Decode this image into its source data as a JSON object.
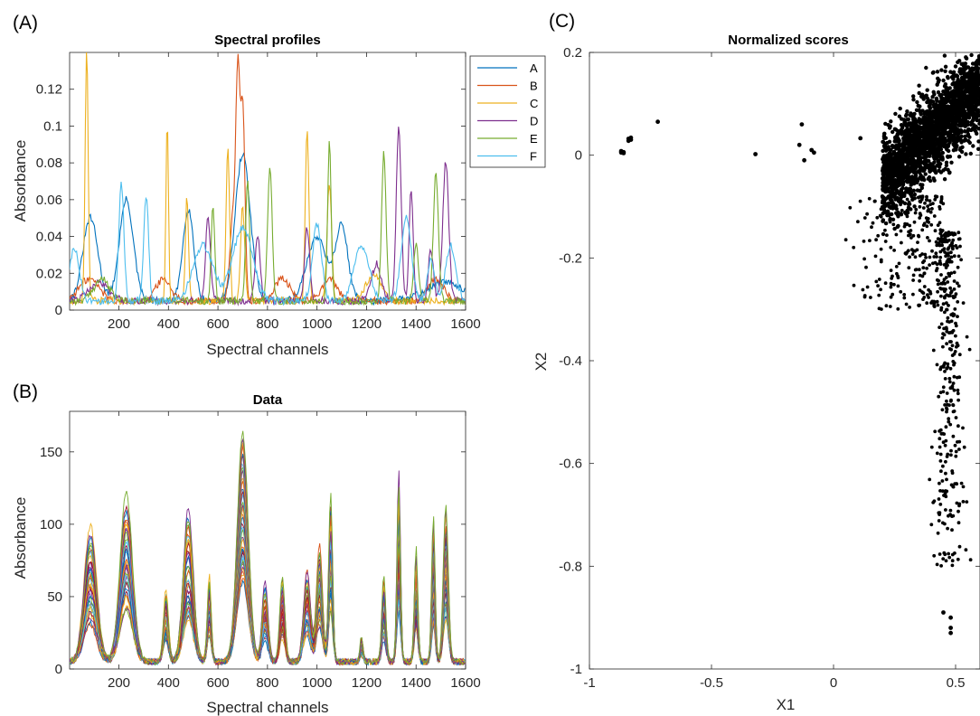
{
  "panels": {
    "a": "(A)",
    "b": "(B)",
    "c": "(C)"
  },
  "colors": [
    "#0072BD",
    "#D95319",
    "#EDB120",
    "#7E2F8E",
    "#77AC30",
    "#4DBEEE",
    "#A2142F"
  ],
  "chart_data": [
    {
      "type": "line",
      "title": "Spectral profiles",
      "xlabel": "Spectral channels",
      "ylabel": "Absorbance",
      "xlim": [
        1,
        1600
      ],
      "ylim": [
        0,
        0.14
      ],
      "xticks": [
        200,
        400,
        600,
        800,
        1000,
        1200,
        1400,
        1600
      ],
      "yticks": [
        0,
        0.02,
        0.04,
        0.06,
        0.08,
        0.1,
        0.12
      ],
      "legend_position": "outside-right",
      "series": [
        {
          "name": "A",
          "peaks": [
            [
              85,
              0.045,
              30
            ],
            [
              230,
              0.055,
              28
            ],
            [
              480,
              0.05,
              22
            ],
            [
              700,
              0.08,
              30
            ],
            [
              1000,
              0.035,
              40
            ],
            [
              1100,
              0.04,
              25
            ],
            [
              1520,
              0.01,
              80
            ]
          ]
        },
        {
          "name": "B",
          "peaks": [
            [
              80,
              0.012,
              40
            ],
            [
              380,
              0.012,
              30
            ],
            [
              660,
              0.045,
              12
            ],
            [
              680,
              0.113,
              8
            ],
            [
              700,
              0.105,
              9
            ],
            [
              860,
              0.012,
              30
            ],
            [
              1050,
              0.012,
              30
            ],
            [
              1480,
              0.012,
              30
            ]
          ]
        },
        {
          "name": "C",
          "peaks": [
            [
              70,
              0.138,
              6
            ],
            [
              395,
              0.098,
              5
            ],
            [
              475,
              0.057,
              6
            ],
            [
              640,
              0.082,
              7
            ],
            [
              700,
              0.052,
              8
            ],
            [
              960,
              0.095,
              7
            ],
            [
              1050,
              0.065,
              9
            ],
            [
              1230,
              0.015,
              30
            ]
          ]
        },
        {
          "name": "D",
          "peaks": [
            [
              120,
              0.01,
              40
            ],
            [
              560,
              0.045,
              10
            ],
            [
              760,
              0.035,
              10
            ],
            [
              960,
              0.04,
              10
            ],
            [
              1240,
              0.02,
              20
            ],
            [
              1330,
              0.094,
              10
            ],
            [
              1380,
              0.06,
              8
            ],
            [
              1460,
              0.028,
              10
            ],
            [
              1520,
              0.076,
              12
            ]
          ]
        },
        {
          "name": "E",
          "peaks": [
            [
              130,
              0.012,
              30
            ],
            [
              580,
              0.052,
              7
            ],
            [
              720,
              0.065,
              8
            ],
            [
              810,
              0.073,
              9
            ],
            [
              1050,
              0.086,
              7
            ],
            [
              1270,
              0.08,
              9
            ],
            [
              1400,
              0.03,
              10
            ],
            [
              1480,
              0.07,
              10
            ]
          ]
        },
        {
          "name": "F",
          "peaks": [
            [
              20,
              0.028,
              20
            ],
            [
              210,
              0.064,
              10
            ],
            [
              310,
              0.056,
              10
            ],
            [
              540,
              0.03,
              40
            ],
            [
              700,
              0.04,
              40
            ],
            [
              1000,
              0.042,
              18
            ],
            [
              1180,
              0.03,
              30
            ],
            [
              1360,
              0.046,
              20
            ],
            [
              1460,
              0.022,
              15
            ],
            [
              1540,
              0.03,
              20
            ]
          ]
        }
      ]
    },
    {
      "type": "line",
      "title": "Data",
      "xlabel": "Spectral channels",
      "ylabel": "Absorbance",
      "xlim": [
        1,
        1600
      ],
      "ylim": [
        0,
        178
      ],
      "xticks": [
        200,
        400,
        600,
        800,
        1000,
        1200,
        1400,
        1600
      ],
      "yticks": [
        0,
        50,
        100,
        150
      ],
      "envelope_peaks": [
        [
          85,
          98,
          25
        ],
        [
          230,
          118,
          25
        ],
        [
          390,
          52,
          10
        ],
        [
          480,
          106,
          20
        ],
        [
          565,
          65,
          8
        ],
        [
          700,
          176,
          22
        ],
        [
          790,
          58,
          12
        ],
        [
          860,
          62,
          10
        ],
        [
          960,
          68,
          14
        ],
        [
          1010,
          85,
          12
        ],
        [
          1055,
          120,
          8
        ],
        [
          1180,
          18,
          6
        ],
        [
          1270,
          62,
          8
        ],
        [
          1330,
          140,
          7
        ],
        [
          1400,
          82,
          7
        ],
        [
          1470,
          100,
          7
        ],
        [
          1520,
          108,
          10
        ]
      ],
      "series_count": 40
    },
    {
      "type": "scatter",
      "title": "Normalized scores",
      "xlabel": "X1",
      "ylabel": "X2",
      "xlim": [
        -1,
        0.6
      ],
      "ylim": [
        -1,
        0.2
      ],
      "xticks": [
        -1,
        -0.5,
        0,
        0.5
      ],
      "yticks": [
        -1,
        -0.8,
        -0.6,
        -0.4,
        -0.2,
        0,
        0.2
      ],
      "clusters": [
        {
          "points": [
            [
              -0.87,
              0.005
            ],
            [
              -0.86,
              0.004
            ],
            [
              -0.87,
              0.008
            ],
            [
              -0.86,
              0.006
            ],
            [
              -0.84,
              0.032
            ],
            [
              -0.83,
              0.034
            ],
            [
              -0.84,
              0.028
            ],
            [
              -0.83,
              0.03
            ],
            [
              -0.72,
              0.065
            ],
            [
              -0.32,
              0.002
            ],
            [
              -0.13,
              0.06
            ],
            [
              -0.14,
              0.02
            ],
            [
              -0.12,
              -0.01
            ],
            [
              -0.09,
              0.01
            ],
            [
              -0.08,
              0.005
            ],
            [
              0.11,
              0.033
            ]
          ]
        },
        {
          "dense_band": {
            "x_range": [
              0.2,
              0.6
            ],
            "y_center_at": [
              [
                0.2,
                -0.05
              ],
              [
                0.6,
                0.13
              ]
            ],
            "spread": 0.04,
            "count": 2200
          }
        },
        {
          "tail": {
            "x_center": 0.47,
            "x_spread": 0.04,
            "y_range": [
              -0.8,
              -0.15
            ],
            "count": 320
          }
        },
        {
          "sparse_spread": {
            "x_range": [
              0.03,
              0.45
            ],
            "y_range": [
              -0.3,
              -0.08
            ],
            "count": 240
          }
        },
        {
          "points": [
            [
              0.45,
              -0.89
            ],
            [
              0.48,
              -0.9
            ],
            [
              0.48,
              -0.92
            ],
            [
              0.48,
              -0.93
            ]
          ]
        }
      ]
    }
  ]
}
